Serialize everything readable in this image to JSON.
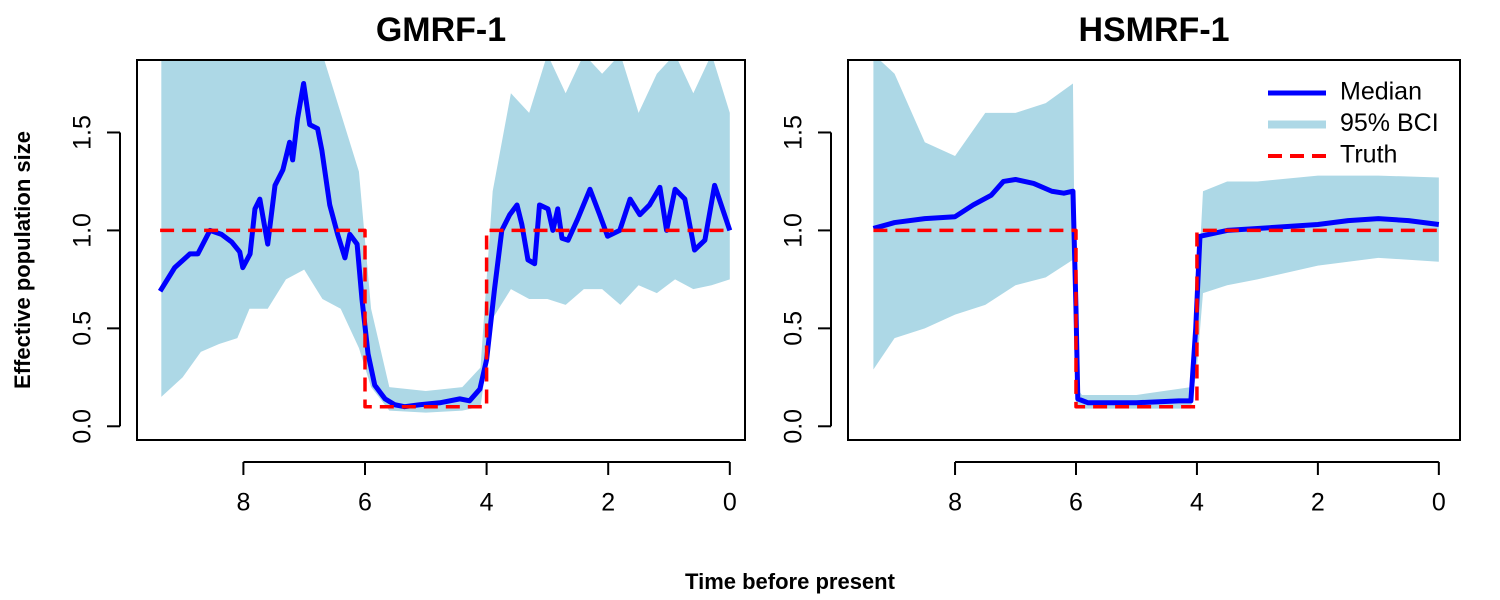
{
  "xlabel": "Time before present",
  "ylabel": "Effective population size",
  "chart_data": [
    {
      "type": "line",
      "title": "GMRF-1",
      "xlim": [
        9.75,
        -0.25
      ],
      "ylim": [
        -0.07,
        1.87
      ],
      "xticks": [
        8,
        6,
        4,
        2,
        0
      ],
      "yticks": [
        {
          "value": 0,
          "label": "0.0"
        },
        0.5,
        {
          "value": 1,
          "label": "1.0"
        },
        1.5
      ],
      "series": [
        {
          "kind": "band",
          "color": "#add8e6",
          "x": [
            9.35,
            9.0,
            8.7,
            8.4,
            8.1,
            7.9,
            7.6,
            7.3,
            7.0,
            6.7,
            6.4,
            6.1,
            5.9,
            5.6,
            5.0,
            4.4,
            4.1,
            3.9,
            3.6,
            3.3,
            3.0,
            2.7,
            2.4,
            2.1,
            1.8,
            1.5,
            1.2,
            0.9,
            0.6,
            0.3,
            0.0
          ],
          "upper": [
            1.9,
            1.9,
            1.9,
            1.9,
            1.9,
            1.9,
            1.9,
            1.9,
            1.9,
            1.9,
            1.6,
            1.3,
            0.6,
            0.2,
            0.18,
            0.2,
            0.3,
            1.2,
            1.7,
            1.6,
            1.9,
            1.7,
            1.9,
            1.8,
            1.9,
            1.6,
            1.8,
            1.9,
            1.7,
            1.9,
            1.6
          ],
          "lower": [
            0.15,
            0.25,
            0.38,
            0.42,
            0.45,
            0.6,
            0.6,
            0.75,
            0.8,
            0.65,
            0.6,
            0.4,
            0.2,
            0.08,
            0.07,
            0.08,
            0.1,
            0.55,
            0.7,
            0.65,
            0.65,
            0.62,
            0.7,
            0.7,
            0.62,
            0.72,
            0.68,
            0.75,
            0.7,
            0.72,
            0.75
          ]
        },
        {
          "kind": "median",
          "color": "#0000ff",
          "x": [
            9.37,
            9.13,
            8.88,
            8.75,
            8.55,
            8.36,
            8.19,
            8.06,
            8.01,
            7.89,
            7.81,
            7.73,
            7.6,
            7.48,
            7.35,
            7.24,
            7.19,
            7.11,
            7.01,
            6.91,
            6.78,
            6.71,
            6.58,
            6.45,
            6.33,
            6.25,
            6.13,
            6.05,
            5.95,
            5.84,
            5.67,
            5.51,
            5.35,
            5.1,
            4.77,
            4.44,
            4.28,
            4.11,
            4.0,
            3.87,
            3.75,
            3.62,
            3.5,
            3.42,
            3.32,
            3.21,
            3.13,
            2.99,
            2.91,
            2.83,
            2.76,
            2.66,
            2.5,
            2.3,
            2.14,
            2.01,
            1.81,
            1.64,
            1.48,
            1.32,
            1.15,
            1.04,
            0.9,
            0.74,
            0.58,
            0.41,
            0.25,
            0.0
          ],
          "values": [
            0.69,
            0.81,
            0.88,
            0.88,
            1.0,
            0.98,
            0.94,
            0.89,
            0.81,
            0.88,
            1.11,
            1.16,
            0.93,
            1.23,
            1.31,
            1.45,
            1.36,
            1.57,
            1.75,
            1.54,
            1.52,
            1.41,
            1.13,
            0.98,
            0.86,
            0.98,
            0.93,
            0.65,
            0.37,
            0.21,
            0.14,
            0.11,
            0.1,
            0.11,
            0.12,
            0.14,
            0.13,
            0.19,
            0.34,
            0.7,
            1.0,
            1.08,
            1.13,
            1.03,
            0.85,
            0.83,
            1.13,
            1.11,
            1.0,
            1.11,
            0.96,
            0.95,
            1.06,
            1.21,
            1.08,
            0.97,
            1.0,
            1.16,
            1.08,
            1.13,
            1.22,
            1.0,
            1.21,
            1.16,
            0.9,
            0.95,
            1.23,
            1.0
          ]
        },
        {
          "kind": "truth",
          "color": "#ff0000",
          "x": [
            9.37,
            6.0,
            6.0,
            4.0,
            4.0,
            0.0
          ],
          "values": [
            1,
            1,
            0.1,
            0.1,
            1,
            1
          ]
        }
      ]
    },
    {
      "type": "line",
      "title": "HSMRF-1",
      "xlim": [
        9.77,
        -0.35
      ],
      "ylim": [
        -0.07,
        1.87
      ],
      "xticks": [
        8,
        6,
        4,
        2,
        0
      ],
      "yticks": [
        {
          "value": 0,
          "label": "0.0"
        },
        0.5,
        {
          "value": 1,
          "label": "1.0"
        },
        1.5
      ],
      "legend": "topright",
      "series": [
        {
          "kind": "median",
          "name": "Median",
          "color": "#0000ff",
          "x": [
            9.35,
            9.0,
            8.5,
            8.0,
            7.7,
            7.4,
            7.2,
            7.0,
            6.7,
            6.4,
            6.2,
            6.05,
            6.0,
            5.97,
            5.8,
            5.0,
            4.3,
            4.1,
            4.02,
            3.95,
            3.5,
            3.0,
            2.0,
            1.5,
            1.0,
            0.5,
            0.0
          ],
          "values": [
            1.01,
            1.04,
            1.06,
            1.07,
            1.13,
            1.18,
            1.25,
            1.26,
            1.24,
            1.2,
            1.19,
            1.2,
            0.6,
            0.14,
            0.12,
            0.12,
            0.13,
            0.13,
            0.5,
            0.97,
            1.0,
            1.01,
            1.03,
            1.05,
            1.06,
            1.05,
            1.03
          ]
        },
        {
          "kind": "band",
          "name": "95% BCI",
          "color": "#add8e6",
          "x": [
            9.35,
            9.0,
            8.5,
            8.0,
            7.5,
            7.0,
            6.5,
            6.05,
            6.0,
            5.9,
            5.0,
            4.1,
            4.0,
            3.9,
            3.5,
            3.0,
            2.0,
            1.0,
            0.0
          ],
          "upper": [
            1.9,
            1.8,
            1.45,
            1.38,
            1.6,
            1.6,
            1.65,
            1.75,
            0.2,
            0.16,
            0.16,
            0.2,
            0.6,
            1.2,
            1.25,
            1.25,
            1.28,
            1.28,
            1.27
          ],
          "lower": [
            0.29,
            0.45,
            0.5,
            0.57,
            0.62,
            0.72,
            0.76,
            0.85,
            0.09,
            0.09,
            0.09,
            0.09,
            0.3,
            0.68,
            0.72,
            0.75,
            0.82,
            0.86,
            0.84
          ]
        },
        {
          "kind": "truth",
          "name": "Truth",
          "color": "#ff0000",
          "x": [
            9.35,
            6.0,
            6.0,
            4.0,
            4.0,
            0.0
          ],
          "values": [
            1,
            1,
            0.1,
            0.1,
            1,
            1
          ]
        }
      ]
    }
  ]
}
